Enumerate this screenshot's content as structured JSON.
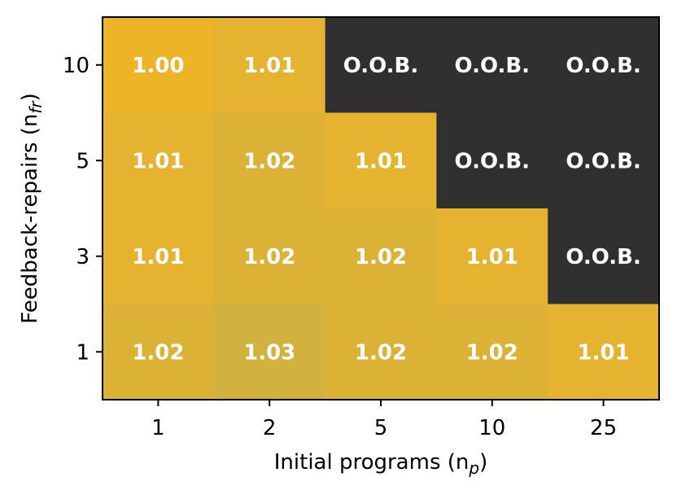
{
  "chart_data": {
    "type": "heatmap",
    "title": "",
    "xlabel": "Initial programs (n",
    "xlabel_sub": "p",
    "xlabel_end": ")",
    "ylabel": "Feedback-repairs (n",
    "ylabel_sub": "fr",
    "ylabel_end": ")",
    "x_categories": [
      "1",
      "2",
      "5",
      "10",
      "25"
    ],
    "y_categories": [
      "10",
      "5",
      "3",
      "1"
    ],
    "values": [
      [
        1.0,
        1.01,
        null,
        null,
        null
      ],
      [
        1.01,
        1.02,
        1.01,
        null,
        null
      ],
      [
        1.01,
        1.02,
        1.02,
        1.01,
        null
      ],
      [
        1.02,
        1.03,
        1.02,
        1.02,
        1.01
      ]
    ],
    "labels": [
      [
        "1.00",
        "1.01",
        "O.O.B.",
        "O.O.B.",
        "O.O.B."
      ],
      [
        "1.01",
        "1.02",
        "1.01",
        "O.O.B.",
        "O.O.B."
      ],
      [
        "1.01",
        "1.02",
        "1.02",
        "1.01",
        "O.O.B."
      ],
      [
        "1.02",
        "1.03",
        "1.02",
        "1.02",
        "1.01"
      ]
    ],
    "out_of_bounds_label": "O.O.B.",
    "colorscale": {
      "min": 1.0,
      "max": 1.03,
      "low_color": "#eeb427",
      "high_color": "#d3b13e"
    },
    "oob_color": "#303030"
  }
}
